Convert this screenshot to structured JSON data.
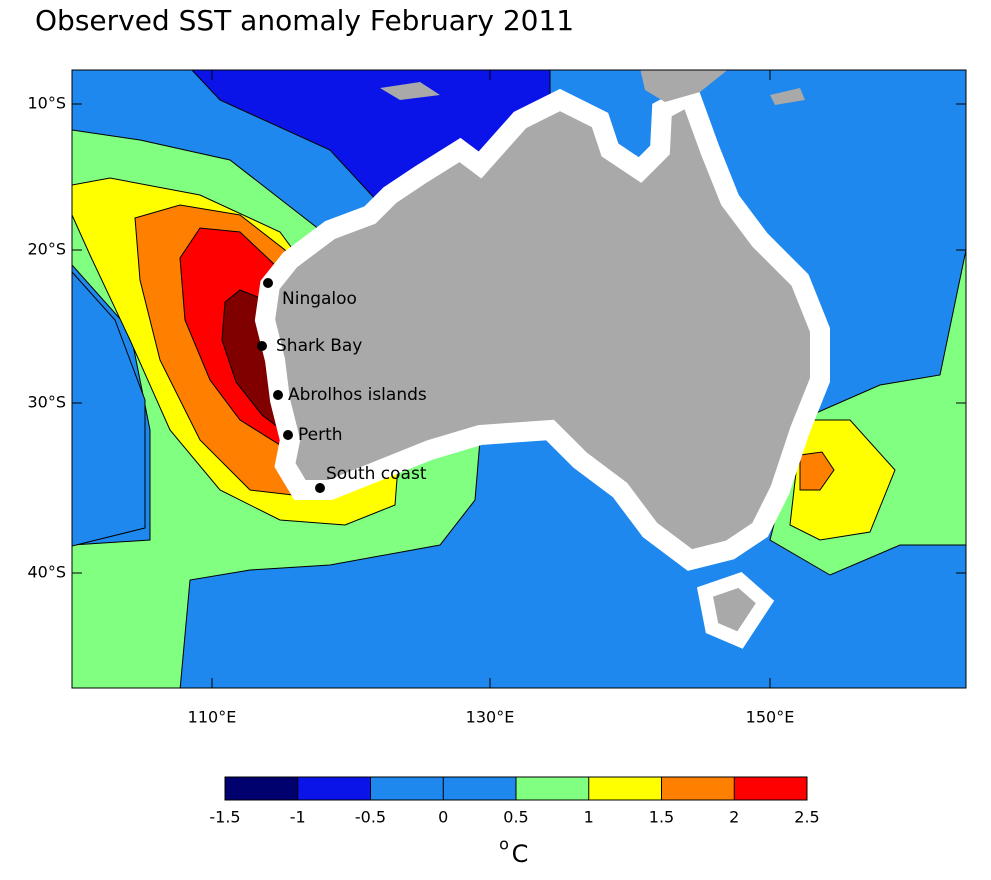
{
  "title": "Observed SST anomaly February 2011",
  "lat_labels": [
    "10°S",
    "20°S",
    "30°S",
    "40°S"
  ],
  "lon_labels": [
    "110°E",
    "130°E",
    "150°E"
  ],
  "places": [
    "Ningaloo",
    "Shark Bay",
    "Abrolhos islands",
    "Perth",
    "South coast"
  ],
  "colorbar": {
    "bins": [
      -1.5,
      -1,
      -0.5,
      0,
      0.5,
      1,
      1.5,
      2,
      2.5
    ],
    "colors": [
      "#00006e",
      "#0a14e8",
      "#1e88ee",
      "#1e88ee",
      "#80ff80",
      "#ffff00",
      "#ff8000",
      "#ff0000"
    ],
    "unit_degree": "o",
    "unit_letter": "C"
  }
}
